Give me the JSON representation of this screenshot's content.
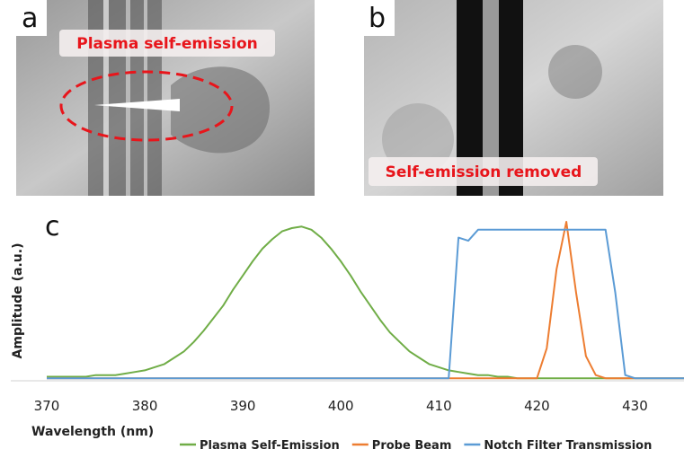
{
  "panels": {
    "a": {
      "label": "a",
      "annotation": "Plasma self-emission"
    },
    "b": {
      "label": "b",
      "annotation": "Self-emission removed"
    }
  },
  "chart_data": {
    "type": "line",
    "panel_label": "c",
    "xlabel": "Wavelength (nm)",
    "ylabel": "Amplitude (a.u.)",
    "xlim": [
      370,
      435
    ],
    "xticks": [
      370,
      380,
      390,
      400,
      410,
      420,
      430
    ],
    "ylim": [
      0,
      1
    ],
    "x": [
      370,
      371,
      372,
      373,
      374,
      375,
      376,
      377,
      378,
      379,
      380,
      381,
      382,
      383,
      384,
      385,
      386,
      387,
      388,
      389,
      390,
      391,
      392,
      393,
      394,
      395,
      396,
      397,
      398,
      399,
      400,
      401,
      402,
      403,
      404,
      405,
      406,
      407,
      408,
      409,
      410,
      411,
      412,
      413,
      414,
      415,
      416,
      417,
      418,
      419,
      420,
      421,
      422,
      423,
      424,
      425,
      426,
      427,
      428,
      429,
      430,
      431,
      432,
      433,
      434,
      435
    ],
    "series": [
      {
        "name": "Plasma Self-Emission",
        "color": "#70ad47",
        "values": [
          0.02,
          0.02,
          0.02,
          0.02,
          0.02,
          0.03,
          0.03,
          0.03,
          0.04,
          0.05,
          0.06,
          0.08,
          0.1,
          0.14,
          0.18,
          0.24,
          0.31,
          0.39,
          0.47,
          0.57,
          0.66,
          0.75,
          0.83,
          0.89,
          0.94,
          0.96,
          0.97,
          0.95,
          0.9,
          0.83,
          0.75,
          0.66,
          0.56,
          0.47,
          0.38,
          0.3,
          0.24,
          0.18,
          0.14,
          0.1,
          0.08,
          0.06,
          0.05,
          0.04,
          0.03,
          0.03,
          0.02,
          0.02,
          0.01,
          0.01,
          0.01,
          0.01,
          0.01,
          0.01,
          0.01,
          0.01,
          0.01,
          0.01,
          0.01,
          0.01,
          0.01,
          0.01,
          0.01,
          0.01,
          0.01,
          0.01
        ]
      },
      {
        "name": "Probe Beam",
        "color": "#ed7d31",
        "values": [
          0.01,
          0.01,
          0.01,
          0.01,
          0.01,
          0.01,
          0.01,
          0.01,
          0.01,
          0.01,
          0.01,
          0.01,
          0.01,
          0.01,
          0.01,
          0.01,
          0.01,
          0.01,
          0.01,
          0.01,
          0.01,
          0.01,
          0.01,
          0.01,
          0.01,
          0.01,
          0.01,
          0.01,
          0.01,
          0.01,
          0.01,
          0.01,
          0.01,
          0.01,
          0.01,
          0.01,
          0.01,
          0.01,
          0.01,
          0.01,
          0.01,
          0.01,
          0.01,
          0.01,
          0.01,
          0.01,
          0.01,
          0.01,
          0.01,
          0.01,
          0.01,
          0.2,
          0.7,
          1.0,
          0.55,
          0.15,
          0.03,
          0.01,
          0.01,
          0.01,
          0.01,
          0.01,
          0.01,
          0.01,
          0.01,
          0.01
        ]
      },
      {
        "name": "Notch Filter Transmission",
        "color": "#5b9bd5",
        "values": [
          0.01,
          0.01,
          0.01,
          0.01,
          0.01,
          0.01,
          0.01,
          0.01,
          0.01,
          0.01,
          0.01,
          0.01,
          0.01,
          0.01,
          0.01,
          0.01,
          0.01,
          0.01,
          0.01,
          0.01,
          0.01,
          0.01,
          0.01,
          0.01,
          0.01,
          0.01,
          0.01,
          0.01,
          0.01,
          0.01,
          0.01,
          0.01,
          0.01,
          0.01,
          0.01,
          0.01,
          0.01,
          0.01,
          0.01,
          0.01,
          0.01,
          0.01,
          0.9,
          0.88,
          0.95,
          0.95,
          0.95,
          0.95,
          0.95,
          0.95,
          0.95,
          0.95,
          0.95,
          0.95,
          0.95,
          0.95,
          0.95,
          0.95,
          0.55,
          0.03,
          0.01,
          0.01,
          0.01,
          0.01,
          0.01,
          0.01
        ]
      }
    ]
  }
}
